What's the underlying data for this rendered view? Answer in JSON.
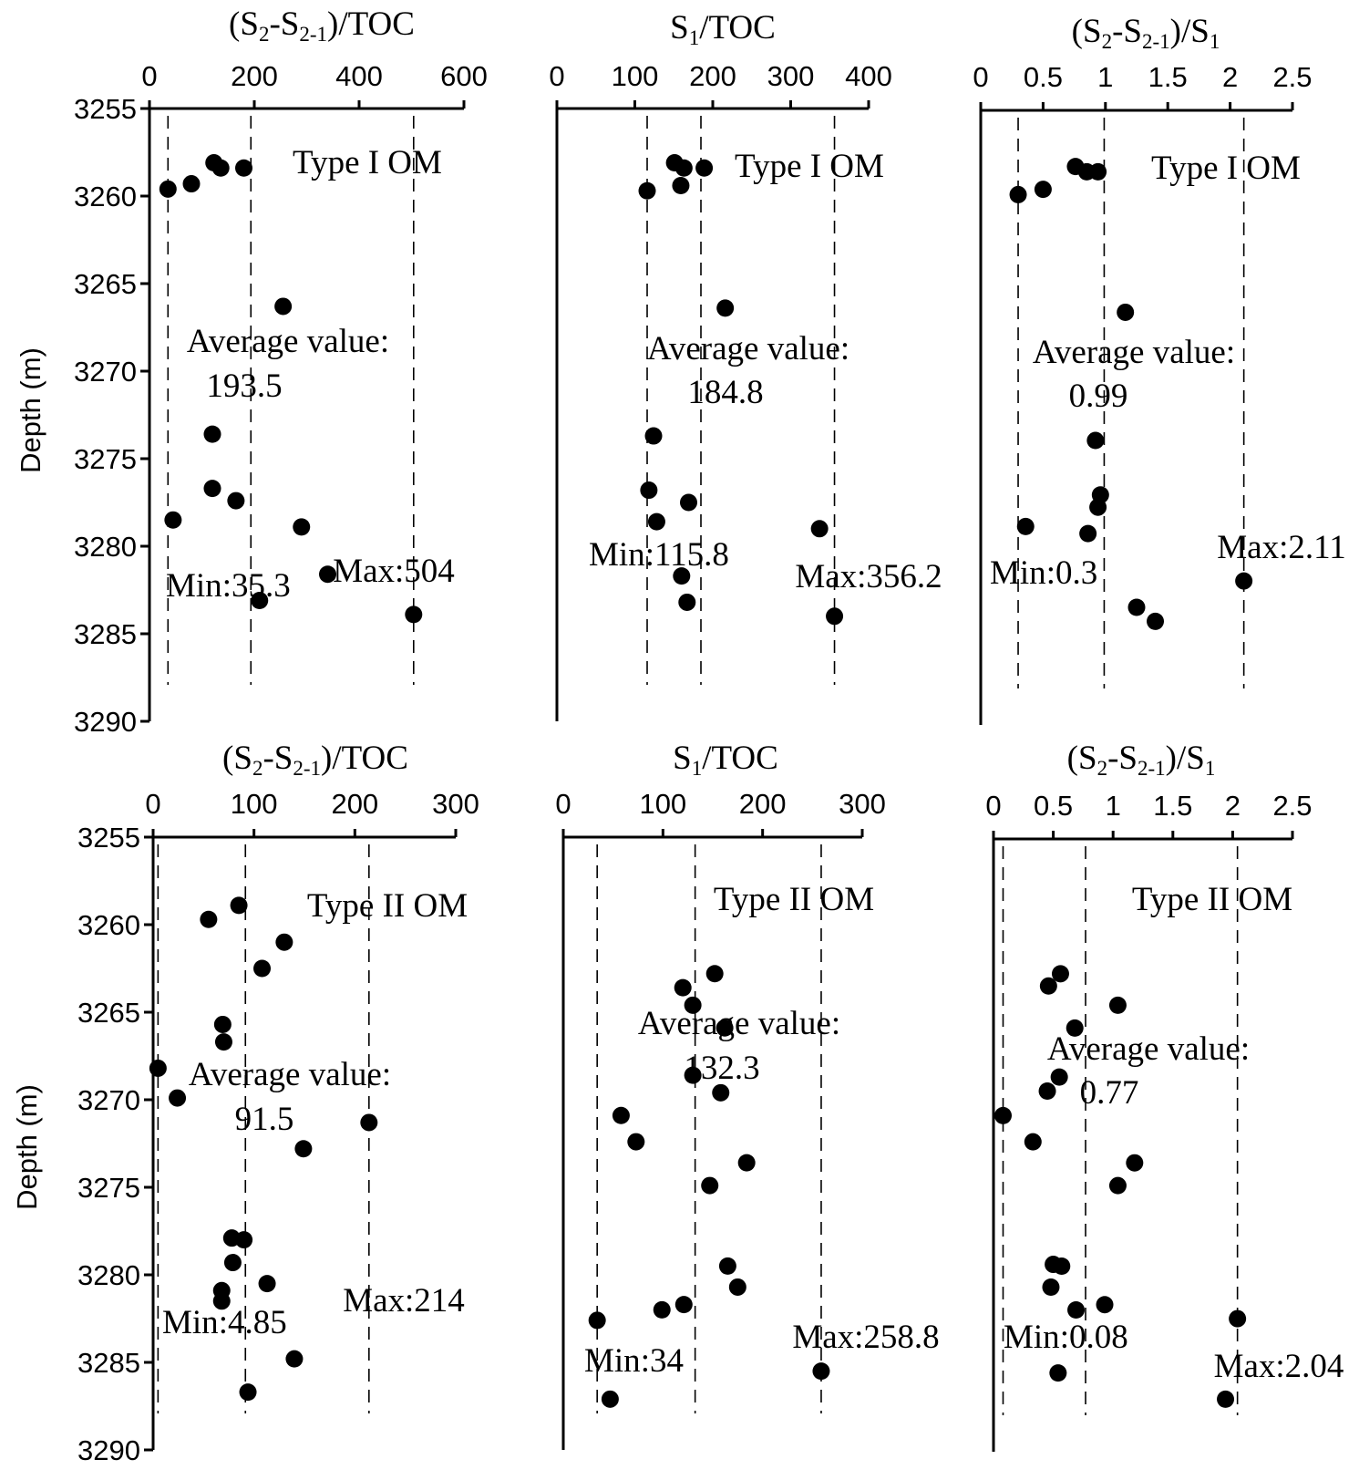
{
  "y_axis_label": "Depth (m)",
  "chart_data": [
    {
      "type": "scatter",
      "title": {
        "open": "(S",
        "sub1": "2",
        "mid": "-S",
        "sub2": "2-1",
        "close": ")/TOC"
      },
      "xticks": [
        "0",
        "200",
        "400",
        "600"
      ],
      "xlim": [
        0,
        600
      ],
      "ylim": [
        3255,
        3290
      ],
      "yticks": [
        "3255",
        "3260",
        "3265",
        "3270",
        "3275",
        "3280",
        "3285",
        "3290"
      ],
      "type_label": "Type I OM",
      "average": {
        "label": "Average value:",
        "value_text": "193.5",
        "value": 193.5
      },
      "min": {
        "label": "Min",
        "sep": ":",
        "value_text": "35.3",
        "value": 35.3
      },
      "max": {
        "label": "Max",
        "sep": ":",
        "value_text": "504",
        "value": 504
      },
      "points": [
        {
          "x": 123,
          "y": 3258.1
        },
        {
          "x": 136,
          "y": 3258.4
        },
        {
          "x": 180,
          "y": 3258.4
        },
        {
          "x": 80,
          "y": 3259.3
        },
        {
          "x": 35.3,
          "y": 3259.6
        },
        {
          "x": 255,
          "y": 3266.3
        },
        {
          "x": 120,
          "y": 3273.6
        },
        {
          "x": 120,
          "y": 3276.7
        },
        {
          "x": 165,
          "y": 3277.4
        },
        {
          "x": 45,
          "y": 3278.5
        },
        {
          "x": 290,
          "y": 3278.9
        },
        {
          "x": 340,
          "y": 3281.6
        },
        {
          "x": 210,
          "y": 3283.1
        },
        {
          "x": 504,
          "y": 3283.9
        }
      ]
    },
    {
      "type": "scatter",
      "title": {
        "open": "S",
        "sub1": "1",
        "mid": "",
        "sub2": "",
        "close": "/TOC"
      },
      "xticks": [
        "0",
        "100",
        "200",
        "300",
        "400"
      ],
      "xlim": [
        0,
        400
      ],
      "ylim": [
        3255,
        3290
      ],
      "yticks": [],
      "type_label": "Type I OM",
      "average": {
        "label": "Average value:",
        "value_text": "184.8",
        "value": 184.8
      },
      "min": {
        "label": "Min",
        "sep": ":",
        "value_text": "115.8",
        "value": 115.8
      },
      "max": {
        "label": "Max",
        "sep": ":",
        "value_text": "356.2",
        "value": 356.2
      },
      "points": [
        {
          "x": 151,
          "y": 3258.1
        },
        {
          "x": 163,
          "y": 3258.4
        },
        {
          "x": 189,
          "y": 3258.4
        },
        {
          "x": 159,
          "y": 3259.4
        },
        {
          "x": 115.8,
          "y": 3259.7
        },
        {
          "x": 216,
          "y": 3266.4
        },
        {
          "x": 124,
          "y": 3273.7
        },
        {
          "x": 118,
          "y": 3276.8
        },
        {
          "x": 169,
          "y": 3277.5
        },
        {
          "x": 128,
          "y": 3278.6
        },
        {
          "x": 337,
          "y": 3279.0
        },
        {
          "x": 160,
          "y": 3281.7
        },
        {
          "x": 167,
          "y": 3283.2
        },
        {
          "x": 356.2,
          "y": 3284.0
        }
      ]
    },
    {
      "type": "scatter",
      "title": {
        "open": "(S",
        "sub1": "2",
        "mid": "-S",
        "sub2": "2-1",
        "close": ")/S",
        "sub3": "1"
      },
      "xticks": [
        "0",
        "0.5",
        "1",
        "1.5",
        "2",
        "2.5"
      ],
      "xlim": [
        0,
        2.5
      ],
      "ylim": [
        3255,
        3290
      ],
      "yticks": [],
      "type_label": "Type I OM",
      "average": {
        "label": "Average value:",
        "value_text": "0.99",
        "value": 0.99
      },
      "min": {
        "label": "Min",
        "sep": ":",
        "value_text": "0.3",
        "value": 0.3
      },
      "max": {
        "label": "Max",
        "sep": ":",
        "value_text": "2.11",
        "value": 2.11
      },
      "points": [
        {
          "x": 0.76,
          "y": 3258.2
        },
        {
          "x": 0.85,
          "y": 3258.5
        },
        {
          "x": 0.94,
          "y": 3258.5
        },
        {
          "x": 0.5,
          "y": 3259.5
        },
        {
          "x": 0.3,
          "y": 3259.8
        },
        {
          "x": 1.16,
          "y": 3266.5
        },
        {
          "x": 0.92,
          "y": 3273.8
        },
        {
          "x": 0.96,
          "y": 3276.9
        },
        {
          "x": 0.94,
          "y": 3277.6
        },
        {
          "x": 0.36,
          "y": 3278.7
        },
        {
          "x": 0.86,
          "y": 3279.1
        },
        {
          "x": 2.11,
          "y": 3281.8
        },
        {
          "x": 1.25,
          "y": 3283.3
        },
        {
          "x": 1.4,
          "y": 3284.1
        }
      ]
    },
    {
      "type": "scatter",
      "title": {
        "open": "(S",
        "sub1": "2",
        "mid": "-S",
        "sub2": "2-1",
        "close": ")/TOC"
      },
      "xticks": [
        "0",
        "100",
        "200",
        "300"
      ],
      "xlim": [
        0,
        300
      ],
      "ylim": [
        3255,
        3290
      ],
      "yticks": [
        "3255",
        "3260",
        "3265",
        "3270",
        "3275",
        "3280",
        "3285",
        "3290"
      ],
      "type_label": "Type II OM",
      "average": {
        "label": "Average value:",
        "value_text": "91.5",
        "value": 91.5
      },
      "min": {
        "label": "Min",
        "sep": ":",
        "value_text": "4.85",
        "value": 4.85
      },
      "max": {
        "label": "Max",
        "sep": ":",
        "value_text": "214",
        "value": 214
      },
      "points": [
        {
          "x": 85,
          "y": 3258.9
        },
        {
          "x": 55,
          "y": 3259.7
        },
        {
          "x": 130,
          "y": 3261.0
        },
        {
          "x": 108,
          "y": 3262.5
        },
        {
          "x": 69,
          "y": 3265.7
        },
        {
          "x": 70,
          "y": 3266.7
        },
        {
          "x": 4.85,
          "y": 3268.2
        },
        {
          "x": 24,
          "y": 3269.9
        },
        {
          "x": 214,
          "y": 3271.3
        },
        {
          "x": 149,
          "y": 3272.8
        },
        {
          "x": 78,
          "y": 3277.9
        },
        {
          "x": 90,
          "y": 3278.0
        },
        {
          "x": 79,
          "y": 3279.3
        },
        {
          "x": 113,
          "y": 3280.5
        },
        {
          "x": 68,
          "y": 3280.9
        },
        {
          "x": 68,
          "y": 3281.5
        },
        {
          "x": 140,
          "y": 3284.8
        },
        {
          "x": 94,
          "y": 3286.7
        }
      ]
    },
    {
      "type": "scatter",
      "title": {
        "open": "S",
        "sub1": "1",
        "mid": "",
        "sub2": "",
        "close": "/TOC"
      },
      "xticks": [
        "0",
        "100",
        "200",
        "300"
      ],
      "xlim": [
        0,
        300
      ],
      "ylim": [
        3255,
        3290
      ],
      "yticks": [],
      "type_label": "Type II OM",
      "average": {
        "label": "Average value:",
        "value_text": "132.3",
        "value": 132.3
      },
      "min": {
        "label": "Min",
        "sep": ":",
        "value_text": "34",
        "value": 34
      },
      "max": {
        "label": "Max",
        "sep": ":",
        "value_text": "258.8",
        "value": 258.8
      },
      "points": [
        {
          "x": 152,
          "y": 3262.8
        },
        {
          "x": 120,
          "y": 3263.6
        },
        {
          "x": 130,
          "y": 3264.6
        },
        {
          "x": 162,
          "y": 3265.9
        },
        {
          "x": 130,
          "y": 3268.6
        },
        {
          "x": 158,
          "y": 3269.6
        },
        {
          "x": 58,
          "y": 3270.9
        },
        {
          "x": 73,
          "y": 3272.4
        },
        {
          "x": 184,
          "y": 3273.6
        },
        {
          "x": 147,
          "y": 3274.9
        },
        {
          "x": 165,
          "y": 3279.5
        },
        {
          "x": 175,
          "y": 3280.7
        },
        {
          "x": 121,
          "y": 3281.7
        },
        {
          "x": 99,
          "y": 3282.0
        },
        {
          "x": 34,
          "y": 3282.6
        },
        {
          "x": 258.8,
          "y": 3285.5
        },
        {
          "x": 47,
          "y": 3287.1
        }
      ]
    },
    {
      "type": "scatter",
      "title": {
        "open": "(S",
        "sub1": "2",
        "mid": "-S",
        "sub2": "2-1",
        "close": ")/S",
        "sub3": "1"
      },
      "xticks": [
        "0",
        "0.5",
        "1",
        "1.5",
        "2",
        "2.5"
      ],
      "xlim": [
        0,
        2.5
      ],
      "ylim": [
        3255,
        3290
      ],
      "yticks": [],
      "type_label": "Type II OM",
      "average": {
        "label": "Average value:",
        "value_text": "0.77",
        "value": 0.77
      },
      "min": {
        "label": "Min",
        "sep": ":",
        "value_text": "0.08",
        "value": 0.08
      },
      "max": {
        "label": "Max",
        "sep": ":",
        "value_text": "2.04",
        "value": 2.04
      },
      "points": [
        {
          "x": 0.56,
          "y": 3262.7
        },
        {
          "x": 0.46,
          "y": 3263.4
        },
        {
          "x": 1.04,
          "y": 3264.5
        },
        {
          "x": 0.68,
          "y": 3265.8
        },
        {
          "x": 0.55,
          "y": 3268.6
        },
        {
          "x": 0.45,
          "y": 3269.4
        },
        {
          "x": 0.08,
          "y": 3270.8
        },
        {
          "x": 0.33,
          "y": 3272.3
        },
        {
          "x": 1.18,
          "y": 3273.5
        },
        {
          "x": 1.04,
          "y": 3274.8
        },
        {
          "x": 0.5,
          "y": 3279.3
        },
        {
          "x": 0.57,
          "y": 3279.4
        },
        {
          "x": 0.48,
          "y": 3280.6
        },
        {
          "x": 0.93,
          "y": 3281.6
        },
        {
          "x": 0.69,
          "y": 3281.9
        },
        {
          "x": 2.04,
          "y": 3282.4
        },
        {
          "x": 0.54,
          "y": 3285.5
        },
        {
          "x": 1.94,
          "y": 3287.0
        }
      ]
    }
  ]
}
